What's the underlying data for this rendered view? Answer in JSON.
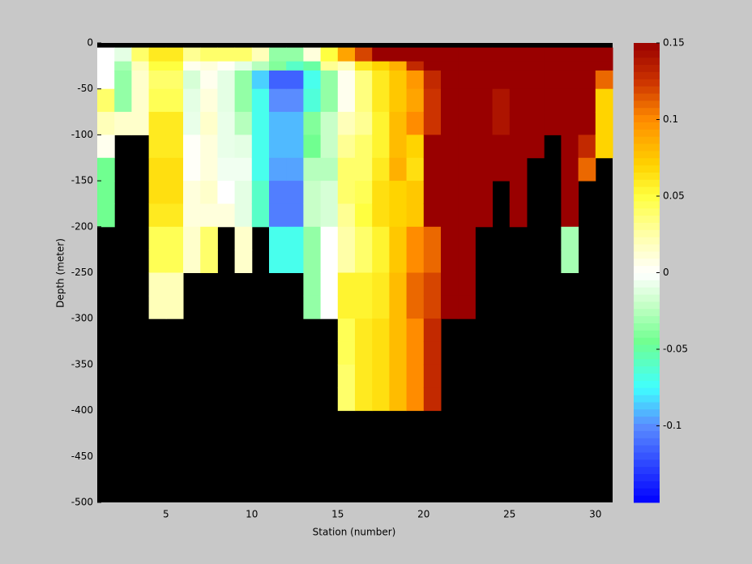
{
  "chart_data": {
    "type": "heatmap",
    "xlabel": "Station (number)",
    "ylabel": "Depth (meter)",
    "x": [
      1,
      2,
      3,
      4,
      5,
      6,
      7,
      8,
      9,
      10,
      11,
      12,
      13,
      14,
      15,
      16,
      17,
      18,
      19,
      20,
      21,
      22,
      23,
      24,
      25,
      26,
      27,
      28,
      29,
      30,
      31
    ],
    "y": [
      0,
      -5,
      -20,
      -30,
      -50,
      -75,
      -100,
      -125,
      -150,
      -175,
      -200,
      -225,
      -250,
      -275,
      -300,
      -325,
      -350,
      -375,
      -400,
      -425,
      -450,
      -475,
      -500
    ],
    "z": [
      [
        null,
        0,
        0,
        0,
        0.04,
        0.02,
        0.005,
        -0.045,
        -0.045,
        -0.045,
        null,
        null,
        null,
        null,
        null,
        null,
        null,
        null,
        null,
        null,
        null,
        null
      ],
      [
        null,
        -0.01,
        -0.03,
        -0.035,
        -0.035,
        0.015,
        null,
        null,
        null,
        null,
        null,
        null,
        null,
        null,
        null,
        null,
        null,
        null,
        null,
        null,
        null,
        null
      ],
      [
        null,
        0.04,
        0.02,
        0.015,
        0.015,
        0.015,
        null,
        null,
        null,
        null,
        null,
        null,
        null,
        null,
        null,
        null,
        null,
        null,
        null,
        null,
        null,
        null
      ],
      [
        null,
        0.06,
        0.05,
        0.04,
        0.045,
        0.06,
        0.06,
        0.065,
        0.065,
        0.06,
        0.045,
        0.045,
        0.02,
        0.02,
        null,
        null,
        null,
        null,
        null,
        null,
        null,
        null
      ],
      [
        null,
        0.06,
        0.05,
        0.04,
        0.045,
        0.06,
        0.06,
        0.065,
        0.065,
        0.06,
        0.045,
        0.045,
        0.02,
        0.02,
        null,
        null,
        null,
        null,
        null,
        null,
        null,
        null
      ],
      [
        null,
        0.03,
        0.005,
        -0.015,
        -0.01,
        -0.008,
        0.002,
        0.002,
        0.01,
        0.01,
        0.015,
        0.015,
        null,
        null,
        null,
        null,
        null,
        null,
        null,
        null,
        null,
        null
      ],
      [
        null,
        0.04,
        0.01,
        0.005,
        0.01,
        0.015,
        0.01,
        0.01,
        0.015,
        0.01,
        0.04,
        0.04,
        null,
        null,
        null,
        null,
        null,
        null,
        null,
        null,
        null,
        null
      ],
      [
        null,
        0.04,
        0.003,
        -0.01,
        -0.01,
        -0.008,
        -0.008,
        -0.005,
        0,
        0.01,
        null,
        null,
        null,
        null,
        null,
        null,
        null,
        null,
        null,
        null,
        null,
        null
      ],
      [
        null,
        0.04,
        -0.01,
        -0.035,
        -0.035,
        -0.025,
        -0.01,
        -0.005,
        -0.01,
        -0.01,
        0.015,
        0.015,
        null,
        null,
        null,
        null,
        null,
        null,
        null,
        null,
        null,
        null
      ],
      [
        null,
        0.02,
        -0.025,
        -0.085,
        -0.07,
        -0.07,
        -0.07,
        -0.07,
        -0.06,
        -0.06,
        null,
        null,
        null,
        null,
        null,
        null,
        null,
        null,
        null,
        null,
        null,
        null
      ],
      [
        null,
        -0.035,
        -0.04,
        -0.115,
        -0.1,
        -0.09,
        -0.09,
        -0.095,
        -0.105,
        -0.105,
        -0.07,
        -0.07,
        null,
        null,
        null,
        null,
        null,
        null,
        null,
        null,
        null,
        null
      ],
      [
        null,
        -0.035,
        -0.06,
        -0.115,
        -0.1,
        -0.09,
        -0.09,
        -0.095,
        -0.105,
        -0.105,
        -0.07,
        -0.07,
        null,
        null,
        null,
        null,
        null,
        null,
        null,
        null,
        null,
        null
      ],
      [
        null,
        0.01,
        -0.05,
        -0.07,
        -0.065,
        -0.04,
        -0.045,
        -0.025,
        -0.02,
        -0.02,
        -0.035,
        -0.035,
        -0.035,
        -0.035,
        null,
        null,
        null,
        null,
        null,
        null,
        null,
        null
      ],
      [
        null,
        0.05,
        0.03,
        -0.035,
        -0.035,
        -0.02,
        -0.02,
        -0.025,
        -0.015,
        -0.015,
        0,
        0,
        0,
        0,
        null,
        null,
        null,
        null,
        null,
        null,
        null,
        null
      ],
      [
        null,
        0.09,
        0.02,
        0.005,
        0.005,
        0.02,
        0.03,
        0.04,
        0.04,
        0.03,
        0.025,
        0.025,
        0.055,
        0.055,
        0.045,
        0.045,
        0.04,
        0.04,
        null,
        null,
        null,
        null
      ],
      [
        null,
        0.12,
        0.06,
        0.035,
        0.035,
        0.03,
        0.04,
        0.04,
        0.045,
        0.05,
        0.04,
        0.04,
        0.055,
        0.055,
        0.06,
        0.06,
        0.06,
        0.06,
        null,
        null,
        null,
        null
      ],
      [
        null,
        0.15,
        0.07,
        0.06,
        0.06,
        0.055,
        0.055,
        0.06,
        0.065,
        0.065,
        0.055,
        0.055,
        0.06,
        0.06,
        0.065,
        0.065,
        0.065,
        0.065,
        null,
        null,
        null,
        null
      ],
      [
        null,
        0.15,
        0.085,
        0.075,
        0.075,
        0.08,
        0.08,
        0.085,
        0.07,
        0.07,
        0.075,
        0.075,
        0.08,
        0.08,
        0.08,
        0.08,
        0.08,
        0.08,
        null,
        null,
        null,
        null
      ],
      [
        null,
        0.15,
        0.13,
        0.095,
        0.09,
        0.1,
        0.07,
        0.065,
        0.075,
        0.075,
        0.1,
        0.1,
        0.11,
        0.11,
        0.1,
        0.1,
        0.1,
        0.1,
        null,
        null,
        null,
        null
      ],
      [
        null,
        0.15,
        0.15,
        0.13,
        0.125,
        0.125,
        0.15,
        0.15,
        0.15,
        0.15,
        0.11,
        0.11,
        0.12,
        0.12,
        0.13,
        0.13,
        0.13,
        0.13,
        null,
        null,
        null,
        null
      ],
      [
        null,
        0.15,
        0.15,
        0.15,
        0.15,
        0.15,
        0.15,
        0.15,
        0.15,
        0.15,
        0.15,
        0.15,
        0.15,
        0.15,
        null,
        null,
        null,
        null,
        null,
        null,
        null,
        null
      ],
      [
        null,
        0.15,
        0.15,
        0.15,
        0.15,
        0.15,
        0.15,
        0.15,
        0.15,
        0.15,
        0.15,
        0.15,
        0.15,
        0.15,
        null,
        null,
        null,
        null,
        null,
        null,
        null,
        null
      ],
      [
        null,
        0.15,
        0.15,
        0.15,
        0.15,
        0.15,
        0.15,
        0.15,
        0.15,
        0.15,
        null,
        null,
        null,
        null,
        null,
        null,
        null,
        null,
        null,
        null,
        null,
        null
      ],
      [
        null,
        0.15,
        0.15,
        0.15,
        0.14,
        0.14,
        0.15,
        0.15,
        null,
        null,
        null,
        null,
        null,
        null,
        null,
        null,
        null,
        null,
        null,
        null,
        null,
        null
      ],
      [
        null,
        0.15,
        0.15,
        0.15,
        0.15,
        0.15,
        0.15,
        0.15,
        0.15,
        0.15,
        null,
        null,
        null,
        null,
        null,
        null,
        null,
        null,
        null,
        null,
        null,
        null
      ],
      [
        null,
        0.15,
        0.15,
        0.15,
        0.15,
        0.15,
        0.15,
        null,
        null,
        null,
        null,
        null,
        null,
        null,
        null,
        null,
        null,
        null,
        null,
        null,
        null,
        null
      ],
      [
        null,
        0.15,
        0.15,
        0.15,
        0.15,
        0.15,
        null,
        null,
        null,
        null,
        null,
        null,
        null,
        null,
        null,
        null,
        null,
        null,
        null,
        null,
        null,
        null
      ],
      [
        null,
        0.15,
        0.15,
        0.15,
        0.15,
        0.15,
        0.15,
        0.15,
        0.15,
        0.15,
        -0.03,
        -0.03,
        null,
        null,
        null,
        null,
        null,
        null,
        null,
        null,
        null,
        null
      ],
      [
        null,
        0.15,
        0.15,
        0.15,
        0.15,
        0.15,
        0.13,
        0.11,
        null,
        null,
        null,
        null,
        null,
        null,
        null,
        null,
        null,
        null,
        null,
        null,
        null,
        null
      ],
      [
        null,
        0.15,
        0.15,
        0.11,
        0.07,
        0.07,
        0.07,
        null,
        null,
        null,
        null,
        null,
        null,
        null,
        null,
        null,
        null,
        null,
        null,
        null,
        null,
        null
      ]
    ],
    "xlim": [
      1,
      31
    ],
    "xticks": [
      5,
      10,
      15,
      20,
      25,
      30
    ],
    "ylim": [
      -500,
      0
    ],
    "yticks": [
      0,
      -50,
      -100,
      -150,
      -200,
      -250,
      -300,
      -350,
      -400,
      -450,
      -500
    ],
    "clim": [
      -0.15,
      0.15
    ],
    "cticks": [
      0.15,
      0.1,
      0.05,
      0,
      -0.05,
      -0.1
    ],
    "missing_color": "#000000",
    "background": "#c8c8c8",
    "colormap": [
      {
        "value": -0.15,
        "color": "#0000ff"
      },
      {
        "value": -0.1,
        "color": "#5a8cff"
      },
      {
        "value": -0.075,
        "color": "#40ffff"
      },
      {
        "value": -0.045,
        "color": "#70ff90"
      },
      {
        "value": -0.02,
        "color": "#c8ffc8"
      },
      {
        "value": 0,
        "color": "#ffffff"
      },
      {
        "value": 0.025,
        "color": "#ffffa8"
      },
      {
        "value": 0.05,
        "color": "#ffff40"
      },
      {
        "value": 0.07,
        "color": "#ffd400"
      },
      {
        "value": 0.1,
        "color": "#ff8c00"
      },
      {
        "value": 0.125,
        "color": "#cc3300"
      },
      {
        "value": 0.15,
        "color": "#990000"
      }
    ]
  }
}
